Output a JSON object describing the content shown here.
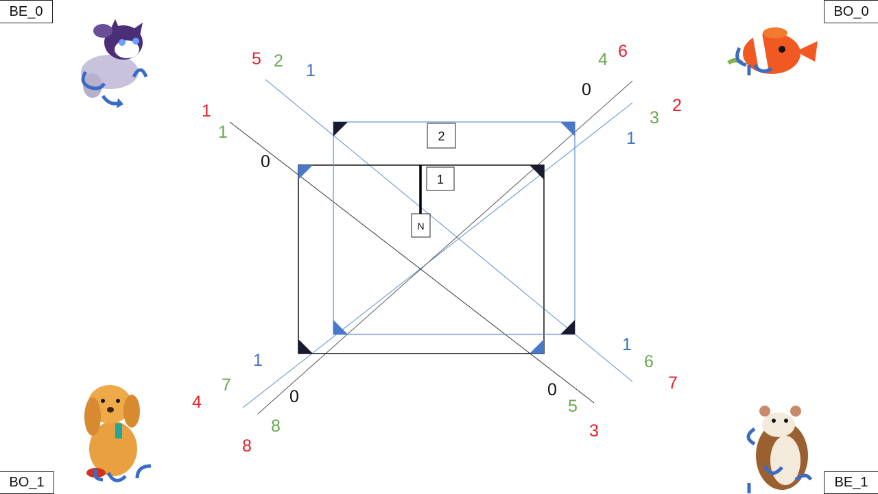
{
  "corners": {
    "top_left": "BE_0",
    "top_right": "BO_0",
    "bottom_left": "BO_1",
    "bottom_right": "BE_1"
  },
  "boxes": {
    "box1": "1",
    "box2": "2",
    "north": "N"
  },
  "toys": {
    "top_left": "plush-cat-toy",
    "top_right": "clownfish-toy",
    "bottom_left": "plush-dog-toy",
    "bottom_right": "hamster-toy"
  },
  "colors": {
    "red": "#e8202a",
    "green": "#6aa84f",
    "blue": "#4472c4",
    "black": "#111111",
    "accent_blue": "#4a78c8"
  },
  "labels": {
    "top_left_outer": {
      "red": "5",
      "green": "2",
      "blue": "1"
    },
    "top_left_inner": {
      "red": "1",
      "green": "1",
      "black": "0"
    },
    "top_right_outer": {
      "green": "4",
      "red": "6",
      "black": "0"
    },
    "top_right_inner": {
      "red": "2",
      "green": "3",
      "blue": "1"
    },
    "bottom_right_outer": {
      "blue": "1",
      "green": "6",
      "red": "7"
    },
    "bottom_right_inner": {
      "black": "0",
      "green": "5",
      "red": "3"
    },
    "bottom_left_outer": {
      "blue": "1",
      "green": "7",
      "red": "4"
    },
    "bottom_left_inner": {
      "black": "0",
      "green": "8",
      "red": "8"
    }
  }
}
